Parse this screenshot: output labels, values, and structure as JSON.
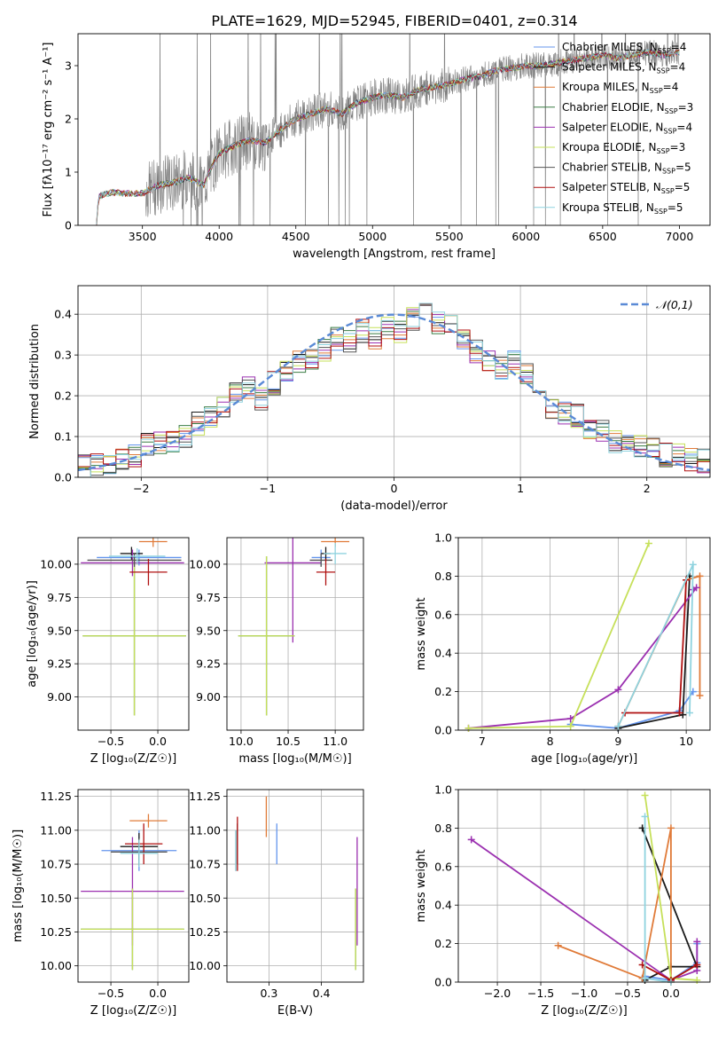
{
  "title": "PLATE=1629, MJD=52945, FIBERID=0401, z=0.314",
  "colors": [
    "#6495ed",
    "#1a1a1a",
    "#e07b39",
    "#3a7d44",
    "#9b30b0",
    "#c6e05a",
    "#555555",
    "#b01010",
    "#8fd3df"
  ],
  "legend_series": [
    {
      "name": "Chabrier MILES",
      "nssp": "4",
      "color": "#6495ed"
    },
    {
      "name": "Salpeter MILES",
      "nssp": "4",
      "color": "#1a1a1a"
    },
    {
      "name": "Kroupa MILES",
      "nssp": "4",
      "color": "#e07b39"
    },
    {
      "name": "Chabrier ELODIE",
      "nssp": "3",
      "color": "#3a7d44"
    },
    {
      "name": "Salpeter ELODIE",
      "nssp": "4",
      "color": "#9b30b0"
    },
    {
      "name": "Kroupa ELODIE",
      "nssp": "3",
      "color": "#c6e05a"
    },
    {
      "name": "Chabrier STELIB",
      "nssp": "5",
      "color": "#555555"
    },
    {
      "name": "Salpeter STELIB",
      "nssp": "5",
      "color": "#b01010"
    },
    {
      "name": "Kroupa STELIB",
      "nssp": "5",
      "color": "#8fd3df"
    }
  ],
  "chart_data": [
    {
      "type": "line",
      "id": "spectrum",
      "xlabel": "wavelength [Angstrom, rest frame]",
      "ylabel": "Flux [fλ10⁻¹⁷ erg cm⁻² s⁻¹ A⁻¹]",
      "xlim": [
        3080,
        7200
      ],
      "ylim": [
        0,
        3.6
      ],
      "xticks": [
        3500,
        4000,
        4500,
        5000,
        5500,
        6000,
        6500,
        7000
      ],
      "yticks": [
        0,
        1,
        2,
        3
      ],
      "model_points": [
        [
          3200,
          0.0
        ],
        [
          3215,
          0.55
        ],
        [
          3300,
          0.62
        ],
        [
          3400,
          0.6
        ],
        [
          3500,
          0.6
        ],
        [
          3600,
          0.75
        ],
        [
          3700,
          0.8
        ],
        [
          3800,
          0.9
        ],
        [
          3900,
          0.75
        ],
        [
          3950,
          1.1
        ],
        [
          4000,
          1.35
        ],
        [
          4100,
          1.5
        ],
        [
          4200,
          1.6
        ],
        [
          4300,
          1.55
        ],
        [
          4400,
          1.8
        ],
        [
          4500,
          2.0
        ],
        [
          4600,
          2.1
        ],
        [
          4700,
          2.2
        ],
        [
          4800,
          2.1
        ],
        [
          4900,
          2.3
        ],
        [
          5000,
          2.4
        ],
        [
          5100,
          2.45
        ],
        [
          5200,
          2.4
        ],
        [
          5300,
          2.55
        ],
        [
          5400,
          2.6
        ],
        [
          5500,
          2.65
        ],
        [
          5600,
          2.75
        ],
        [
          5700,
          2.8
        ],
        [
          5800,
          2.9
        ],
        [
          5900,
          2.95
        ],
        [
          6000,
          3.0
        ],
        [
          6100,
          3.0
        ],
        [
          6200,
          3.05
        ],
        [
          6300,
          3.1
        ],
        [
          6400,
          3.15
        ],
        [
          6500,
          3.2
        ],
        [
          6600,
          3.15
        ],
        [
          6700,
          3.2
        ],
        [
          6800,
          3.25
        ],
        [
          6900,
          3.2
        ],
        [
          7000,
          3.25
        ]
      ],
      "legend_position": "upper-right"
    },
    {
      "type": "histogram",
      "id": "residuals",
      "xlabel": "(data-model)/error",
      "ylabel": "Normed distribution",
      "xlim": [
        -2.5,
        2.5
      ],
      "ylim": [
        0,
        0.47
      ],
      "xticks": [
        -2,
        -1,
        0,
        1,
        2
      ],
      "yticks": [
        0.0,
        0.1,
        0.2,
        0.3,
        0.4
      ],
      "reference_curve": "𝒩(0,1)",
      "legend_position": "upper-right",
      "bin_edges": [
        -2.5,
        -2.4,
        -2.3,
        -2.2,
        -2.1,
        -2.0,
        -1.9,
        -1.8,
        -1.7,
        -1.6,
        -1.5,
        -1.4,
        -1.3,
        -1.2,
        -1.1,
        -1.0,
        -0.9,
        -0.8,
        -0.7,
        -0.6,
        -0.5,
        -0.4,
        -0.3,
        -0.2,
        -0.1,
        0.0,
        0.1,
        0.2,
        0.3,
        0.4,
        0.5,
        0.6,
        0.7,
        0.8,
        0.9,
        1.0,
        1.1,
        1.2,
        1.3,
        1.4,
        1.5,
        1.6,
        1.7,
        1.8,
        1.9,
        2.0,
        2.1,
        2.2,
        2.3,
        2.4,
        2.5
      ],
      "mean_values": [
        0.025,
        0.028,
        0.035,
        0.04,
        0.055,
        0.08,
        0.088,
        0.085,
        0.1,
        0.13,
        0.15,
        0.17,
        0.21,
        0.22,
        0.19,
        0.23,
        0.26,
        0.28,
        0.29,
        0.31,
        0.34,
        0.33,
        0.36,
        0.34,
        0.37,
        0.36,
        0.39,
        0.43,
        0.38,
        0.37,
        0.34,
        0.31,
        0.28,
        0.27,
        0.28,
        0.25,
        0.2,
        0.17,
        0.16,
        0.15,
        0.12,
        0.11,
        0.09,
        0.085,
        0.075,
        0.07,
        0.055,
        0.06,
        0.045,
        0.04
      ]
    },
    {
      "type": "error-bars",
      "id": "age-vs-Z",
      "xlabel": "Z [log₁₀(Z/Z☉)]",
      "ylabel": "age  [log₁₀(age/yr)]",
      "xlim": [
        -0.85,
        0.33
      ],
      "ylim": [
        8.75,
        10.2
      ],
      "xticks": [
        -0.5,
        0.0
      ],
      "yticks": [
        9.0,
        9.25,
        9.5,
        9.75,
        10.0
      ],
      "points": [
        [
          -0.2,
          10.05,
          0.45,
          0.06,
          "#6495ed"
        ],
        [
          -0.28,
          10.08,
          0.12,
          0.05,
          "#1a1a1a"
        ],
        [
          -0.05,
          10.17,
          0.15,
          0.04,
          "#e07b39"
        ],
        [
          -0.25,
          9.46,
          0.55,
          0.6,
          "#3a7d44"
        ],
        [
          -0.27,
          10.01,
          0.55,
          0.1,
          "#9b30b0"
        ],
        [
          -0.25,
          9.46,
          0.55,
          0.6,
          "#c6e05a"
        ],
        [
          -0.25,
          10.03,
          0.5,
          0.05,
          "#555555"
        ],
        [
          -0.1,
          9.94,
          0.2,
          0.1,
          "#b01010"
        ],
        [
          -0.22,
          10.06,
          0.3,
          0.06,
          "#8fd3df"
        ]
      ]
    },
    {
      "type": "error-bars",
      "id": "age-vs-mass",
      "xlabel": "mass [log₁₀(M/M☉)]",
      "ylabel": "",
      "xlim": [
        9.85,
        11.3
      ],
      "ylim": [
        8.75,
        10.2
      ],
      "xticks": [
        10.0,
        10.5,
        11.0
      ],
      "yticks": [
        9.0,
        9.25,
        9.5,
        9.75,
        10.0
      ],
      "points": [
        [
          10.85,
          10.05,
          0.1,
          0.06,
          "#6495ed"
        ],
        [
          10.9,
          10.08,
          0.05,
          0.05,
          "#1a1a1a"
        ],
        [
          11.0,
          10.17,
          0.15,
          0.04,
          "#e07b39"
        ],
        [
          10.27,
          9.46,
          0.3,
          0.6,
          "#3a7d44"
        ],
        [
          10.55,
          10.01,
          0.3,
          0.6,
          "#9b30b0"
        ],
        [
          10.27,
          9.46,
          0.3,
          0.6,
          "#c6e05a"
        ],
        [
          10.85,
          10.03,
          0.12,
          0.05,
          "#555555"
        ],
        [
          10.9,
          9.94,
          0.1,
          0.1,
          "#b01010"
        ],
        [
          11.0,
          10.08,
          0.12,
          0.08,
          "#8fd3df"
        ]
      ]
    },
    {
      "type": "line",
      "id": "weight-vs-age",
      "xlabel": "age  [log₁₀(age/yr)]",
      "ylabel": "mass weight",
      "xlim": [
        6.65,
        10.35
      ],
      "ylim": [
        0,
        1
      ],
      "xticks": [
        7,
        8,
        9,
        10
      ],
      "yticks": [
        0.0,
        0.2,
        0.4,
        0.6,
        0.8,
        1.0
      ],
      "series": [
        {
          "color": "#6495ed",
          "points": [
            [
              8.3,
              0.03
            ],
            [
              9.0,
              0.01
            ],
            [
              9.9,
              0.1
            ],
            [
              10.1,
              0.2
            ]
          ]
        },
        {
          "color": "#1a1a1a",
          "points": [
            [
              9.0,
              0.01
            ],
            [
              9.95,
              0.08
            ],
            [
              10.05,
              0.8
            ]
          ]
        },
        {
          "color": "#e07b39",
          "points": [
            [
              9.0,
              0.02
            ],
            [
              10.0,
              0.78
            ],
            [
              10.2,
              0.8
            ],
            [
              10.2,
              0.18
            ]
          ]
        },
        {
          "color": "#9b30b0",
          "points": [
            [
              6.8,
              0.01
            ],
            [
              8.3,
              0.06
            ],
            [
              9.0,
              0.21
            ],
            [
              10.15,
              0.74
            ],
            [
              10.1,
              0.73
            ]
          ]
        },
        {
          "color": "#c6e05a",
          "points": [
            [
              6.8,
              0.01
            ],
            [
              8.3,
              0.02
            ],
            [
              9.45,
              0.97
            ]
          ]
        },
        {
          "color": "#b01010",
          "points": [
            [
              9.1,
              0.09
            ],
            [
              9.9,
              0.09
            ],
            [
              10.0,
              0.78
            ]
          ]
        },
        {
          "color": "#8fd3df",
          "points": [
            [
              9.0,
              0.02
            ],
            [
              10.1,
              0.86
            ],
            [
              10.05,
              0.09
            ]
          ]
        }
      ]
    },
    {
      "type": "error-bars",
      "id": "mass-vs-Z",
      "xlabel": "Z [log₁₀(Z/Z☉)]",
      "ylabel": "mass [log₁₀(M/M☉)]",
      "xlim": [
        -0.85,
        0.33
      ],
      "ylim": [
        9.88,
        11.3
      ],
      "xticks": [
        -0.5,
        0.0
      ],
      "yticks": [
        10.0,
        10.25,
        10.5,
        10.75,
        11.0,
        11.25
      ],
      "points": [
        [
          -0.2,
          10.85,
          0.4,
          0.15,
          "#6495ed"
        ],
        [
          -0.2,
          10.88,
          0.2,
          0.1,
          "#1a1a1a"
        ],
        [
          -0.1,
          11.07,
          0.2,
          0.05,
          "#e07b39"
        ],
        [
          -0.27,
          10.27,
          0.55,
          0.3,
          "#3a7d44"
        ],
        [
          -0.27,
          10.55,
          0.55,
          0.4,
          "#9b30b0"
        ],
        [
          -0.27,
          10.27,
          0.55,
          0.3,
          "#c6e05a"
        ],
        [
          -0.2,
          10.84,
          0.3,
          0.1,
          "#555555"
        ],
        [
          -0.15,
          10.9,
          0.2,
          0.15,
          "#b01010"
        ],
        [
          -0.2,
          10.83,
          0.2,
          0.1,
          "#8fd3df"
        ]
      ]
    },
    {
      "type": "error-bars",
      "id": "mass-vs-ebv",
      "xlabel": "E(B-V)",
      "ylabel": "",
      "xlim": [
        0.22,
        0.48
      ],
      "ylim": [
        9.88,
        11.3
      ],
      "xticks": [
        0.3,
        0.4
      ],
      "yticks": [
        10.0,
        10.25,
        10.5,
        10.75,
        11.0,
        11.25
      ],
      "points": [
        [
          0.315,
          10.9,
          0,
          0.15,
          "#6495ed"
        ],
        [
          0.24,
          10.9,
          0,
          0.15,
          "#1a1a1a"
        ],
        [
          0.295,
          11.1,
          0,
          0.15,
          "#e07b39"
        ],
        [
          0.465,
          10.27,
          0,
          0.3,
          "#3a7d44"
        ],
        [
          0.468,
          10.55,
          0,
          0.4,
          "#9b30b0"
        ],
        [
          0.465,
          10.27,
          0,
          0.3,
          "#c6e05a"
        ],
        [
          0.237,
          10.85,
          0,
          0.15,
          "#555555"
        ],
        [
          0.24,
          10.9,
          0,
          0.2,
          "#b01010"
        ],
        [
          0.237,
          10.85,
          0,
          0.15,
          "#8fd3df"
        ]
      ]
    },
    {
      "type": "line",
      "id": "weight-vs-Z",
      "xlabel": "Z [log₁₀(Z/Z☉)]",
      "ylabel": "mass weight",
      "xlim": [
        -2.45,
        0.45
      ],
      "ylim": [
        0,
        1
      ],
      "xticks": [
        -2.0,
        -1.5,
        -1.0,
        -0.5,
        0.0
      ],
      "yticks": [
        0.0,
        0.2,
        0.4,
        0.6,
        0.8,
        1.0
      ],
      "series": [
        {
          "color": "#6495ed",
          "points": [
            [
              -0.3,
              0.03
            ],
            [
              0.0,
              0.01
            ],
            [
              0.3,
              0.1
            ],
            [
              0.3,
              0.2
            ]
          ]
        },
        {
          "color": "#1a1a1a",
          "points": [
            [
              -0.3,
              0.01
            ],
            [
              0.0,
              0.08
            ],
            [
              0.3,
              0.08
            ],
            [
              -0.33,
              0.8
            ]
          ]
        },
        {
          "color": "#e07b39",
          "points": [
            [
              -1.3,
              0.19
            ],
            [
              -0.33,
              0.02
            ],
            [
              0.0,
              0.8
            ],
            [
              0.0,
              0.0
            ]
          ]
        },
        {
          "color": "#9b30b0",
          "points": [
            [
              -2.3,
              0.74
            ],
            [
              0.0,
              0.01
            ],
            [
              0.3,
              0.06
            ],
            [
              0.3,
              0.21
            ]
          ]
        },
        {
          "color": "#c6e05a",
          "points": [
            [
              -0.3,
              0.97
            ],
            [
              0.0,
              0.02
            ],
            [
              0.3,
              0.01
            ]
          ]
        },
        {
          "color": "#b01010",
          "points": [
            [
              -0.33,
              0.09
            ],
            [
              0.0,
              0.01
            ],
            [
              0.3,
              0.09
            ]
          ]
        },
        {
          "color": "#8fd3df",
          "points": [
            [
              -0.3,
              0.86
            ],
            [
              -0.3,
              0.02
            ],
            [
              0.0,
              0.0
            ]
          ]
        }
      ]
    }
  ]
}
